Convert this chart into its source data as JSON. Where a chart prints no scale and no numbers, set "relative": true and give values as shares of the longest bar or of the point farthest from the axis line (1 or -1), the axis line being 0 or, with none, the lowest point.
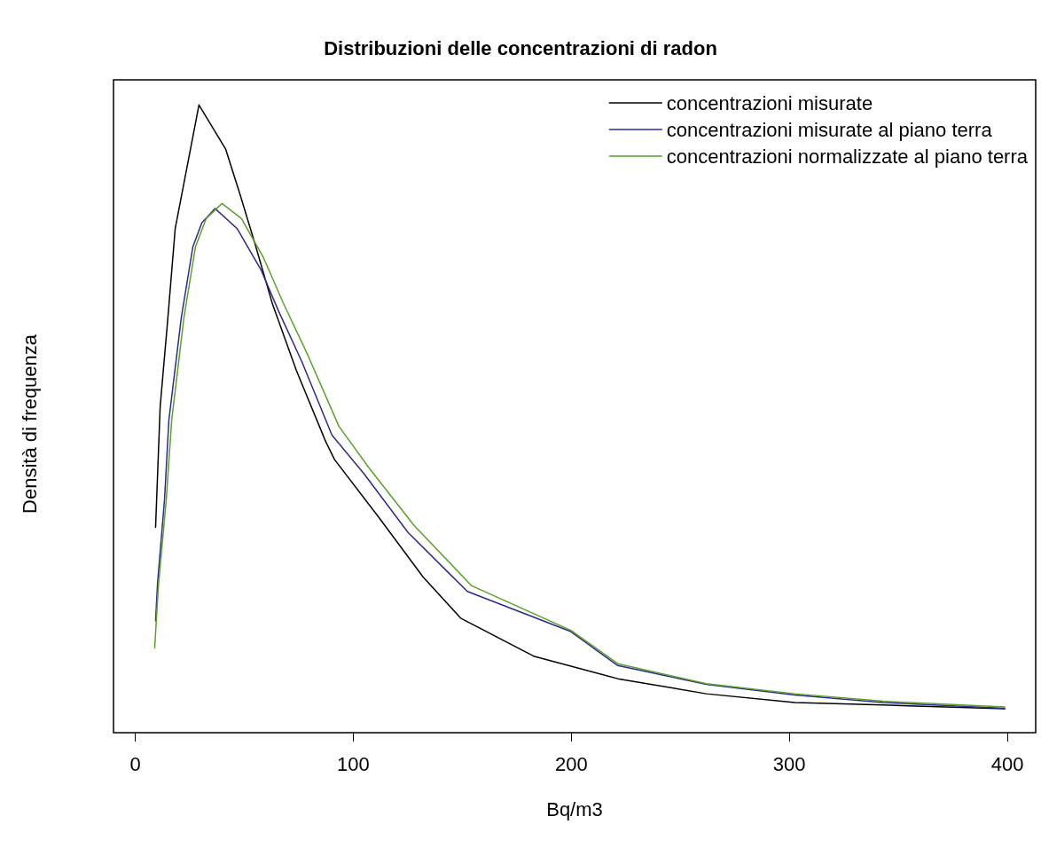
{
  "chart_data": {
    "type": "line",
    "title": "Distribuzioni delle concentrazioni di radon",
    "xlabel": "Bq/m3",
    "ylabel": "Densità di frequenza",
    "relative": true,
    "xlim": [
      -10,
      413
    ],
    "xticks": [
      0,
      100,
      200,
      300,
      400
    ],
    "grid": false,
    "legend": "top right",
    "marker": "none",
    "line_style": "solid",
    "series": [
      {
        "name": "concentrazioni misurate",
        "color": "#000000",
        "x": [
          9.3,
          11.4,
          15.0,
          18.3,
          29.2,
          41.4,
          47.9,
          54.8,
          63.0,
          73.9,
          87.3,
          91.4,
          111.7,
          132,
          149.4,
          182.7,
          221.3,
          261.9,
          302.5,
          343.1,
          398.8
        ],
        "values": [
          0.327,
          0.519,
          0.663,
          0.803,
          1.0,
          0.93,
          0.859,
          0.78,
          0.682,
          0.577,
          0.464,
          0.435,
          0.343,
          0.248,
          0.182,
          0.122,
          0.086,
          0.062,
          0.048,
          0.044,
          0.038
        ]
      },
      {
        "name": "concentrazioni misurate al piano terra",
        "color": "#2b2b8c",
        "x": [
          9.3,
          10.2,
          13.4,
          15.4,
          21.1,
          26.4,
          30.5,
          36.6,
          46.7,
          57.7,
          65.8,
          76.4,
          90.2,
          104.8,
          125.1,
          152.3,
          199.8,
          221.3,
          261.9,
          302.5,
          343.1,
          398.8
        ],
        "values": [
          0.178,
          0.238,
          0.371,
          0.498,
          0.661,
          0.774,
          0.812,
          0.835,
          0.803,
          0.737,
          0.671,
          0.591,
          0.474,
          0.413,
          0.319,
          0.225,
          0.161,
          0.107,
          0.077,
          0.06,
          0.048,
          0.039
        ]
      },
      {
        "name": "concentrazioni normalizzate al piano terra",
        "color": "#5aa02c",
        "x": [
          8.9,
          10.6,
          14.2,
          16.7,
          22.3,
          27.6,
          32.5,
          39.8,
          48.7,
          58.9,
          67.8,
          79.2,
          93.4,
          107.6,
          127.9,
          154.3,
          199.8,
          221.3,
          261.9,
          302.5,
          343.1,
          398.8
        ],
        "values": [
          0.135,
          0.234,
          0.371,
          0.498,
          0.661,
          0.774,
          0.819,
          0.843,
          0.819,
          0.756,
          0.685,
          0.601,
          0.488,
          0.42,
          0.33,
          0.234,
          0.163,
          0.11,
          0.078,
          0.062,
          0.05,
          0.041
        ]
      }
    ]
  }
}
